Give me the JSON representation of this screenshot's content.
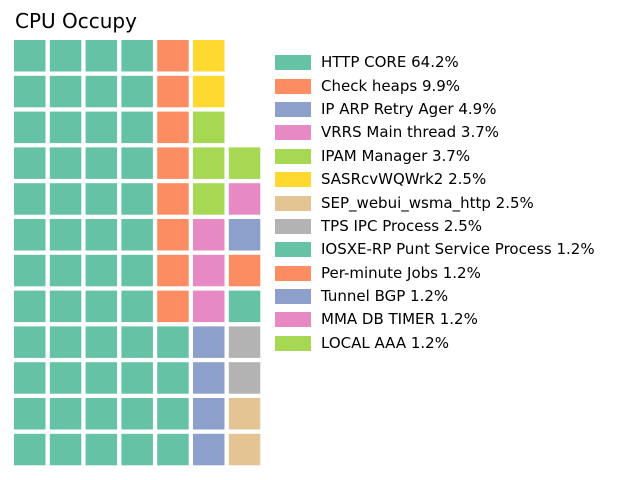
{
  "chart_data": {
    "type": "waffle",
    "title": "CPU Occupy",
    "grid": {
      "rows": 12,
      "columns": 7
    },
    "legend_placement": "right",
    "series": [
      {
        "name": "HTTP CORE",
        "value": 64.2,
        "label": "HTTP CORE 64.2%",
        "color": "#66c2a5",
        "cells": 52
      },
      {
        "name": "Check heaps",
        "value": 9.9,
        "label": "Check heaps 9.9%",
        "color": "#fc8d62",
        "cells": 8
      },
      {
        "name": "IP ARP Retry Ager",
        "value": 4.9,
        "label": "IP ARP Retry Ager 4.9%",
        "color": "#8da0cb",
        "cells": 4
      },
      {
        "name": "VRRS Main thread",
        "value": 3.7,
        "label": "VRRS Main thread 3.7%",
        "color": "#e78ac3",
        "cells": 3
      },
      {
        "name": "IPAM Manager",
        "value": 3.7,
        "label": "IPAM Manager 3.7%",
        "color": "#a6d854",
        "cells": 3
      },
      {
        "name": "SASRcvWQWrk2",
        "value": 2.5,
        "label": "SASRcvWQWrk2 2.5%",
        "color": "#ffd92f",
        "cells": 2
      },
      {
        "name": "SEP_webui_wsma_http",
        "value": 2.5,
        "label": "SEP_webui_wsma_http 2.5%",
        "color": "#e5c494",
        "cells": 2
      },
      {
        "name": "TPS IPC Process",
        "value": 2.5,
        "label": "TPS IPC Process 2.5%",
        "color": "#b3b3b3",
        "cells": 2
      },
      {
        "name": "IOSXE-RP Punt Service Process",
        "value": 1.2,
        "label": "IOSXE-RP Punt Service Process 1.2%",
        "color": "#66c2a5",
        "cells": 1
      },
      {
        "name": "Per-minute Jobs",
        "value": 1.2,
        "label": "Per-minute Jobs 1.2%",
        "color": "#fc8d62",
        "cells": 1
      },
      {
        "name": "Tunnel BGP",
        "value": 1.2,
        "label": "Tunnel BGP 1.2%",
        "color": "#8da0cb",
        "cells": 1
      },
      {
        "name": "MMA DB TIMER",
        "value": 1.2,
        "label": "MMA DB TIMER 1.2%",
        "color": "#e78ac3",
        "cells": 1
      },
      {
        "name": "LOCAL AAA",
        "value": 1.2,
        "label": "LOCAL AAA 1.2%",
        "color": "#a6d854",
        "cells": 1
      }
    ]
  }
}
